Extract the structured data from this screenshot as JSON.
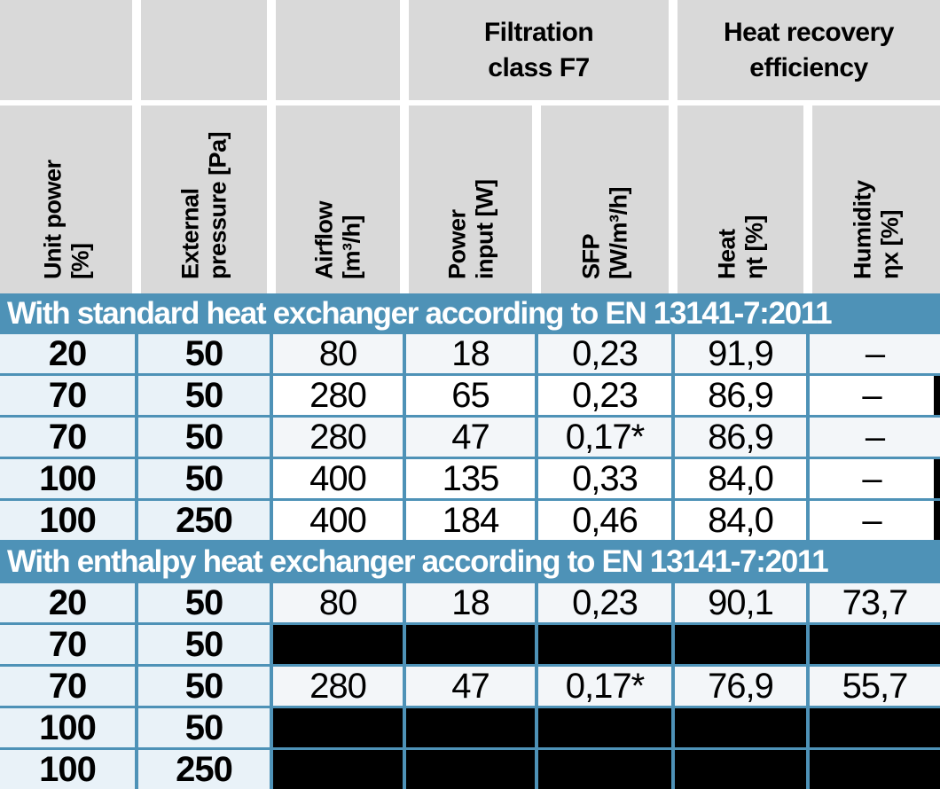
{
  "table": {
    "group_headers": [
      {
        "line1": "Filtration",
        "line2": "class F7"
      },
      {
        "line1": "Heat recovery",
        "line2": "efficiency"
      }
    ],
    "column_headers": [
      {
        "line1": "Unit power",
        "line2": "[%]"
      },
      {
        "line1": "External",
        "line2": "pressure [Pa]"
      },
      {
        "line1": "Airflow",
        "line2": "[m³/h]"
      },
      {
        "line1": "Power",
        "line2": "input [W]"
      },
      {
        "line1": "SFP",
        "line2": "[W/m³/h]"
      },
      {
        "line1": "Heat",
        "line2": "ηt [%]"
      },
      {
        "line1": "Humidity",
        "line2": "ηx [%]"
      }
    ],
    "sections": [
      {
        "title": "With standard heat exchanger according to EN 13141-7:2011",
        "rows": [
          {
            "style": "normal",
            "cells": [
              "20",
              "50",
              "80",
              "18",
              "0,23",
              "91,9",
              "–"
            ]
          },
          {
            "style": "highlight",
            "cells": [
              "70",
              "50",
              "280",
              "65",
              "0,23",
              "86,9",
              "–"
            ]
          },
          {
            "style": "normal",
            "cells": [
              "70",
              "50",
              "280",
              "47",
              "0,17*",
              "86,9",
              "–"
            ]
          },
          {
            "style": "highlight",
            "cells": [
              "100",
              "50",
              "400",
              "135",
              "0,33",
              "84,0",
              "–"
            ]
          },
          {
            "style": "highlight",
            "cells": [
              "100",
              "250",
              "400",
              "184",
              "0,46",
              "84,0",
              "–"
            ]
          }
        ]
      },
      {
        "title": "With enthalpy heat exchanger according to EN 13141-7:2011",
        "rows": [
          {
            "style": "normal",
            "cells": [
              "20",
              "50",
              "80",
              "18",
              "0,23",
              "90,1",
              "73,7"
            ]
          },
          {
            "style": "redacted",
            "cells": [
              "70",
              "50",
              "",
              "",
              "",
              "",
              ""
            ]
          },
          {
            "style": "normal",
            "cells": [
              "70",
              "50",
              "280",
              "47",
              "0,17*",
              "76,9",
              "55,7"
            ]
          },
          {
            "style": "redacted",
            "cells": [
              "100",
              "50",
              "",
              "",
              "",
              "",
              ""
            ]
          },
          {
            "style": "redacted",
            "cells": [
              "100",
              "250",
              "",
              "",
              "",
              "",
              ""
            ]
          }
        ]
      }
    ]
  },
  "colors": {
    "accent_blue": "#4e92b7",
    "header_gray": "#d9d9d9",
    "key_cell_bg": "#e9f2f8",
    "data_cell_bg": "#f3f6f9",
    "highlight_cell_bg": "#ffffff",
    "redacted_cell_bg": "#000000"
  }
}
